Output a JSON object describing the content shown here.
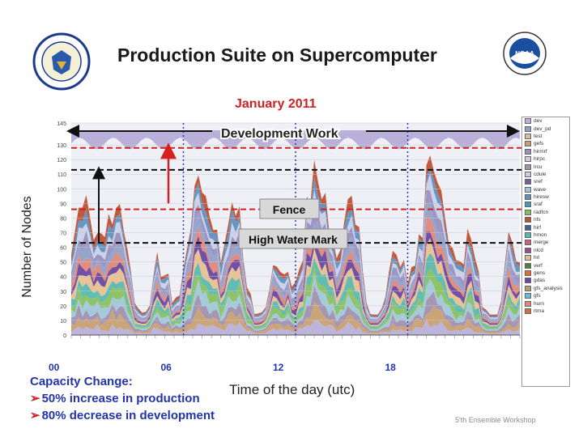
{
  "slide": {
    "title": "Production Suite on Supercomputer",
    "subtitle": "January 2011",
    "footer": "5'th Ensemble Workshop"
  },
  "logos": {
    "left": "doc-seal-logo",
    "right": "noaa-logo"
  },
  "annotations": {
    "development_work": "Development Work",
    "fence": "Fence",
    "high_water_mark": "High Water Mark"
  },
  "capacity": {
    "title": "Capacity Change:",
    "lines": [
      "50% increase in production",
      "80% decrease in development"
    ]
  },
  "colors": {
    "title_red": "#cc2222",
    "caption_blue": "#2233aa",
    "dashed_red": "#d62020",
    "dashed_black": "#111111",
    "dotted_blue": "#3333cc"
  },
  "chart_data": {
    "type": "area",
    "xlabel": "Time of the day (utc)",
    "ylabel": "Number of Nodes",
    "ylim": [
      0,
      145
    ],
    "yticks": [
      0,
      10,
      20,
      30,
      40,
      50,
      60,
      70,
      80,
      90,
      100,
      110,
      120,
      130,
      145
    ],
    "x_major_labels": [
      "00",
      "06",
      "12",
      "18"
    ],
    "horizontal_lines": [
      {
        "y": 128,
        "style": "dashed",
        "color": "#d62020"
      },
      {
        "y": 113,
        "style": "dashed",
        "color": "#111111"
      },
      {
        "y": 86,
        "style": "dashed",
        "color": "#d62020"
      },
      {
        "y": 63,
        "style": "dashed",
        "color": "#111111"
      }
    ],
    "legend": [
      "dev",
      "dev_pd",
      "test",
      "gefs",
      "hirmrf",
      "hirpc",
      "lrcu",
      "cdule",
      "sref",
      "wave",
      "hiresw",
      "sraf",
      "radfcn",
      "nfs",
      "hirf",
      "hmon",
      "merge",
      "nlcd",
      "hrl",
      "verf",
      "gens",
      "gdas",
      "gfs_analysis",
      "gfs",
      "hurn",
      "rtma"
    ],
    "series_colors": [
      "#b8b0d8",
      "#8fa0c8",
      "#d0c0a8",
      "#c8a070",
      "#9890c0",
      "#d8c8e0",
      "#a090b0",
      "#c8d0e8",
      "#7060a0",
      "#a0c8d8",
      "#6090c0",
      "#40a0b0",
      "#88c060",
      "#c05030",
      "#4060a0",
      "#58b8b0",
      "#d06080",
      "#905090",
      "#e8c090",
      "#508040",
      "#e07030",
      "#6848a0",
      "#b0a070",
      "#60c0d8",
      "#e08878",
      "#d07040"
    ]
  }
}
